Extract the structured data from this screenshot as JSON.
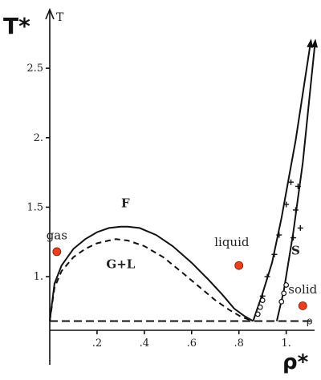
{
  "chart_data": {
    "type": "line",
    "title": "",
    "xlabel": "ρ*",
    "ylabel": "T*",
    "ylabel_secondary": "T",
    "xlim": [
      0.0,
      1.12
    ],
    "ylim": [
      0.66,
      2.72
    ],
    "x_ticks": [
      {
        "value": 0.2,
        "label": ".2"
      },
      {
        "value": 0.4,
        "label": ".4"
      },
      {
        "value": 0.6,
        "label": ".6"
      },
      {
        "value": 0.8,
        "label": ".8"
      },
      {
        "value": 1.0,
        "label": "1."
      }
    ],
    "y_ticks": [
      {
        "value": 1.0,
        "label": "1."
      },
      {
        "value": 1.5,
        "label": "1.5"
      },
      {
        "value": 2.0,
        "label": "2."
      },
      {
        "value": 2.5,
        "label": "2.5"
      }
    ],
    "region_labels": [
      {
        "text": "F",
        "x": 0.32,
        "y": 1.5
      },
      {
        "text": "G+L",
        "x": 0.3,
        "y": 1.06
      },
      {
        "text": "S",
        "x": 1.04,
        "y": 1.16
      }
    ],
    "state_points": [
      {
        "label": "gas",
        "x": 0.03,
        "y": 1.18,
        "label_x": 0.03,
        "label_y": 1.27
      },
      {
        "label": "liquid",
        "x": 0.8,
        "y": 1.08,
        "label_x": 0.77,
        "label_y": 1.22
      },
      {
        "label": "solid",
        "x": 1.07,
        "y": 0.79,
        "label_x": 1.07,
        "label_y": 0.88
      }
    ],
    "triple_line": {
      "label": "ρ",
      "x": [
        0.0,
        1.12
      ],
      "y": 0.68
    },
    "point_color": "#e8401c",
    "series": [
      {
        "style": "solid",
        "x": [
          0.0,
          0.02,
          0.05,
          0.1,
          0.15,
          0.2,
          0.25,
          0.3,
          0.33,
          0.38,
          0.45,
          0.52,
          0.6,
          0.67,
          0.73,
          0.78,
          0.82,
          0.86
        ],
        "y": [
          0.68,
          0.95,
          1.08,
          1.2,
          1.27,
          1.32,
          1.35,
          1.36,
          1.36,
          1.35,
          1.3,
          1.22,
          1.1,
          0.98,
          0.87,
          0.77,
          0.72,
          0.68
        ]
      },
      {
        "style": "dashed",
        "x": [
          0.0,
          0.02,
          0.05,
          0.1,
          0.15,
          0.2,
          0.25,
          0.28,
          0.33,
          0.4,
          0.48,
          0.56,
          0.63,
          0.7,
          0.76,
          0.81,
          0.86
        ],
        "y": [
          0.68,
          0.92,
          1.04,
          1.14,
          1.2,
          1.24,
          1.26,
          1.27,
          1.26,
          1.22,
          1.14,
          1.03,
          0.93,
          0.83,
          0.76,
          0.71,
          0.68
        ]
      },
      {
        "style": "solid",
        "x": [
          0.86,
          0.9,
          0.94,
          0.98,
          1.04,
          1.1
        ],
        "y": [
          0.68,
          0.88,
          1.1,
          1.42,
          1.98,
          2.65
        ]
      },
      {
        "style": "solid",
        "x": [
          0.96,
          0.99,
          1.03,
          1.07,
          1.12
        ],
        "y": [
          0.68,
          0.9,
          1.32,
          1.82,
          2.65
        ]
      }
    ],
    "markers_plus": [
      {
        "x": 0.9,
        "y": 0.86
      },
      {
        "x": 0.92,
        "y": 1.0
      },
      {
        "x": 0.95,
        "y": 1.16
      },
      {
        "x": 0.97,
        "y": 1.3
      },
      {
        "x": 1.0,
        "y": 1.52
      },
      {
        "x": 1.02,
        "y": 1.68
      },
      {
        "x": 1.05,
        "y": 1.65
      },
      {
        "x": 1.06,
        "y": 1.35
      },
      {
        "x": 1.04,
        "y": 1.48
      },
      {
        "x": 1.03,
        "y": 1.28
      }
    ],
    "markers_open": [
      {
        "x": 0.88,
        "y": 0.73
      },
      {
        "x": 0.89,
        "y": 0.78
      },
      {
        "x": 0.9,
        "y": 0.83
      },
      {
        "x": 0.98,
        "y": 0.82
      },
      {
        "x": 0.99,
        "y": 0.88
      },
      {
        "x": 1.0,
        "y": 0.94
      }
    ]
  }
}
